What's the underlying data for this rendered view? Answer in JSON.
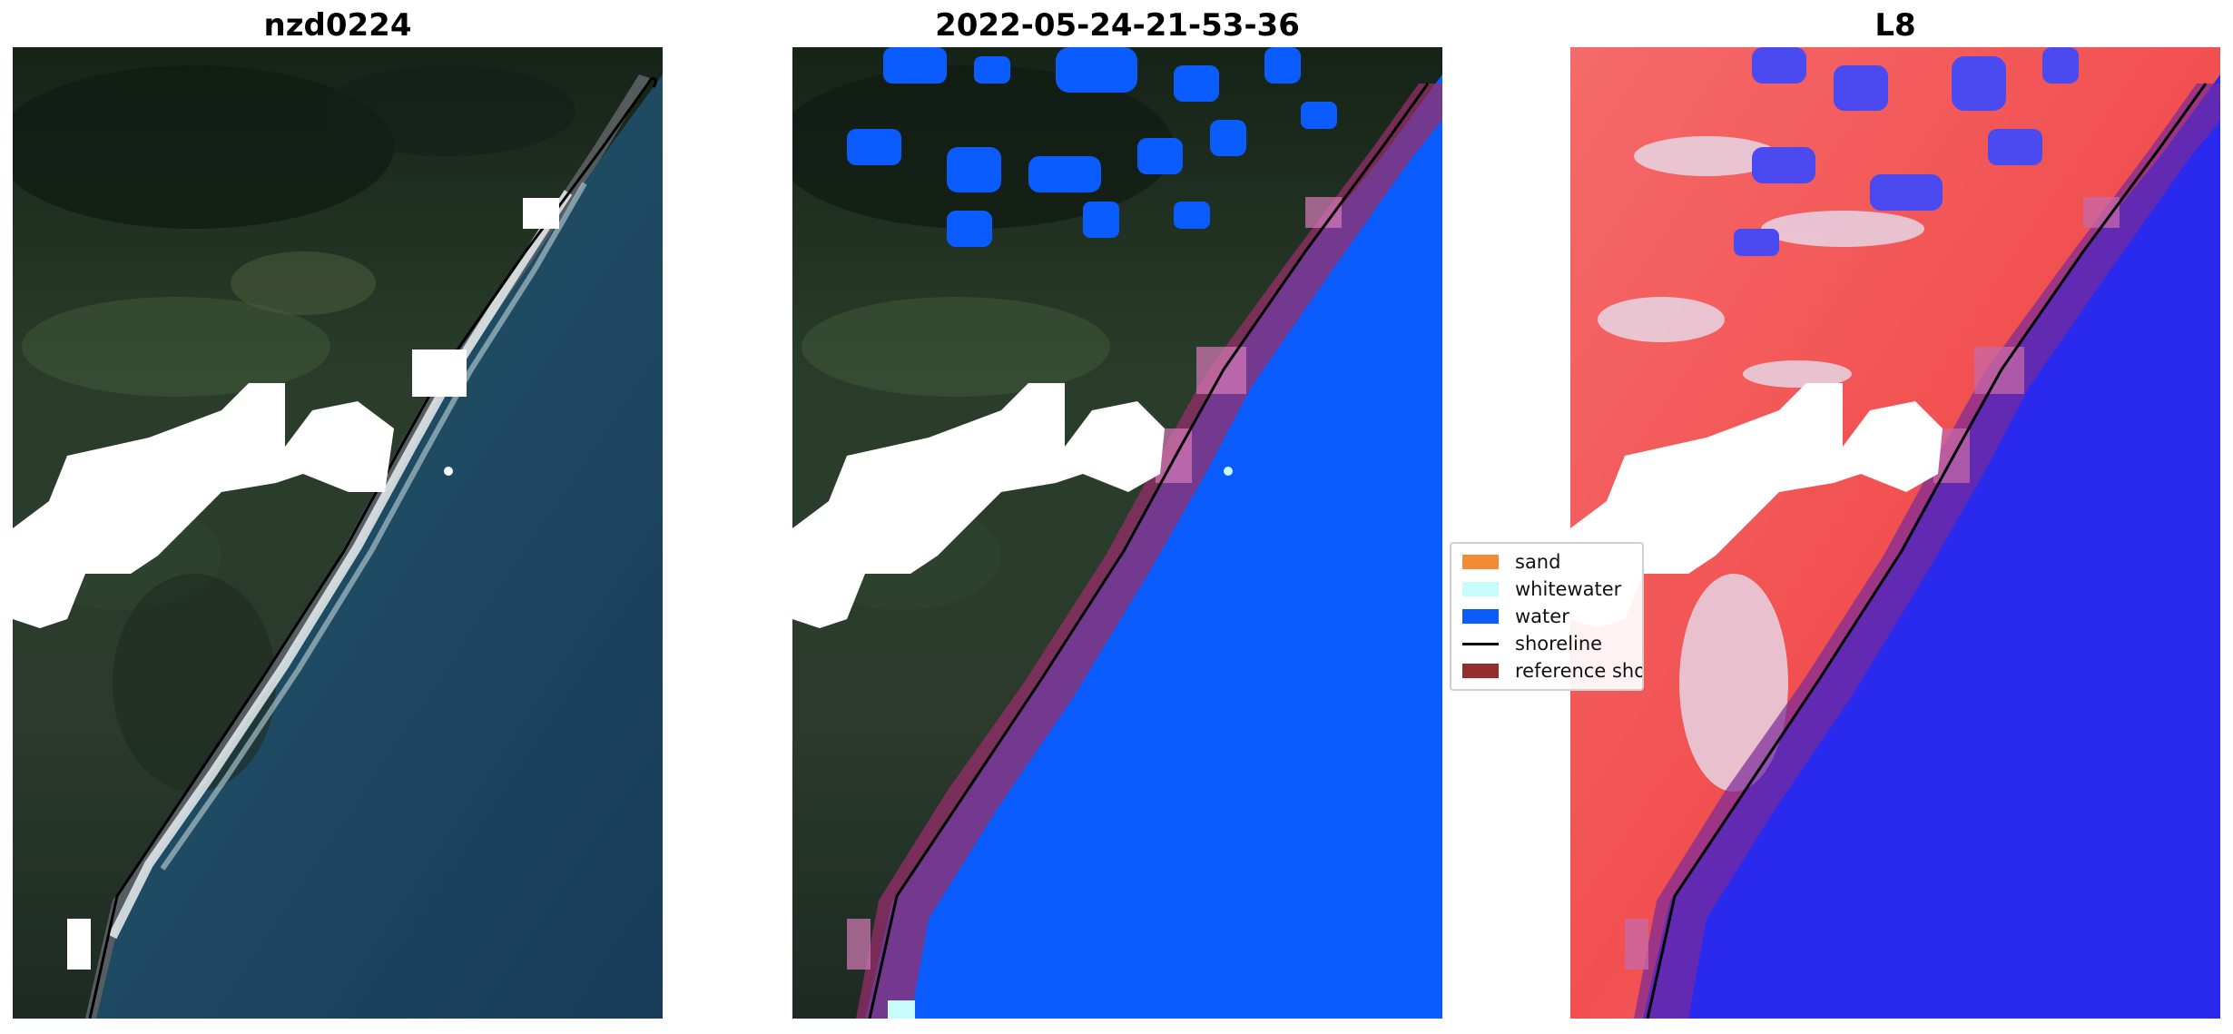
{
  "panels": [
    {
      "title": "nzd0224"
    },
    {
      "title": "2022-05-24-21-53-36"
    },
    {
      "title": "L8"
    }
  ],
  "legend": {
    "items": [
      {
        "label": "sand",
        "color": "#f28a36"
      },
      {
        "label": "whitewater",
        "color": "#c8fbfb"
      },
      {
        "label": "water",
        "color": "#0a5cff"
      },
      {
        "label": "shoreline",
        "color": "#000000"
      },
      {
        "label": "reference shoreline buffer",
        "color": "#962d2d"
      }
    ]
  },
  "colors": {
    "land_dark": "#1e2f26",
    "sea": "#1f4b63",
    "water_class": "#0a5cff",
    "buffer": "#962d6a",
    "index_positive": "#f24545",
    "index_negative": "#2a2aee"
  }
}
